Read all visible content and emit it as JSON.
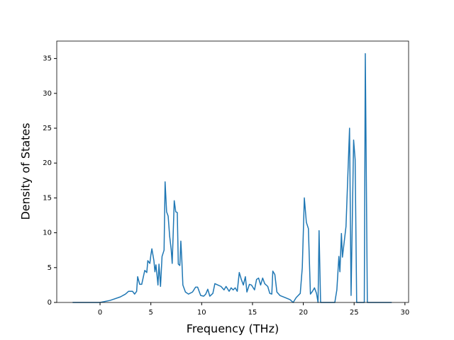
{
  "chart_data": {
    "type": "line",
    "xlabel": "Frequency (THz)",
    "ylabel": "Density of States",
    "x": [
      -2.7,
      0,
      1,
      2,
      2.5,
      2.8,
      3.2,
      3.4,
      3.6,
      3.7,
      3.9,
      4.1,
      4.4,
      4.6,
      4.7,
      4.9,
      5.0,
      5.1,
      5.3,
      5.4,
      5.5,
      5.6,
      5.7,
      5.8,
      5.95,
      6.1,
      6.3,
      6.4,
      6.55,
      6.7,
      6.85,
      7.0,
      7.1,
      7.2,
      7.3,
      7.45,
      7.6,
      7.7,
      7.85,
      7.95,
      8.05,
      8.15,
      8.4,
      8.7,
      9.1,
      9.4,
      9.6,
      9.9,
      10.2,
      10.4,
      10.6,
      10.8,
      11.1,
      11.3,
      11.6,
      11.9,
      12.2,
      12.4,
      12.7,
      12.9,
      13.1,
      13.3,
      13.5,
      13.7,
      13.9,
      14.1,
      14.3,
      14.45,
      14.7,
      14.9,
      15.2,
      15.4,
      15.6,
      15.8,
      16.0,
      16.2,
      16.5,
      16.7,
      16.9,
      17.0,
      17.2,
      17.4,
      17.7,
      18.2,
      18.7,
      19.0,
      19.3,
      19.7,
      19.9,
      20.1,
      20.3,
      20.5,
      20.7,
      20.9,
      21.1,
      21.3,
      21.45,
      21.55,
      21.7,
      23.1,
      23.3,
      23.5,
      23.6,
      23.75,
      23.85,
      24.2,
      24.55,
      24.7,
      24.95,
      25.1,
      25.25,
      26.0,
      26.1,
      26.3,
      28.7
    ],
    "series": [
      {
        "name": "DOS",
        "color": "#1f77b4",
        "values": [
          0,
          0,
          0.3,
          0.8,
          1.2,
          1.6,
          1.6,
          1.2,
          1.6,
          3.7,
          2.6,
          2.6,
          4.6,
          4.3,
          6.0,
          5.6,
          6.8,
          7.7,
          6.0,
          4.4,
          5.4,
          4.0,
          2.5,
          5.5,
          2.3,
          6.6,
          7.5,
          17.3,
          13,
          12.4,
          9.5,
          7.6,
          5.6,
          10,
          14.6,
          13,
          12.9,
          5.5,
          5.3,
          8.8,
          6,
          2.5,
          1.5,
          1.2,
          1.5,
          2.2,
          2.2,
          1.0,
          0.9,
          1.2,
          1.9,
          0.9,
          1.3,
          2.7,
          2.5,
          2.3,
          1.8,
          2.3,
          1.6,
          2.1,
          1.8,
          2.1,
          1.6,
          4.3,
          3.3,
          2.5,
          3.7,
          1.5,
          2.6,
          2.5,
          1.8,
          3.3,
          3.5,
          2.5,
          3.5,
          2.7,
          2.3,
          1.3,
          1.2,
          4.5,
          4.0,
          1.5,
          1.0,
          0.7,
          0.4,
          0,
          0.7,
          1.3,
          5.0,
          15.0,
          11.5,
          10.6,
          1.2,
          1.6,
          2.1,
          1.3,
          0,
          10.3,
          0,
          0,
          1.8,
          6.6,
          4.4,
          9.9,
          6.5,
          10.9,
          25.0,
          1.0,
          23.3,
          20.5,
          0,
          0,
          35.7,
          0,
          0
        ]
      }
    ],
    "xlim": [
      -4.26,
      30.36
    ],
    "ylim": [
      0,
      37.5
    ],
    "xticks": [
      0,
      5,
      10,
      15,
      20,
      25,
      30
    ],
    "yticks": [
      0,
      5,
      10,
      15,
      20,
      25,
      30,
      35
    ]
  }
}
